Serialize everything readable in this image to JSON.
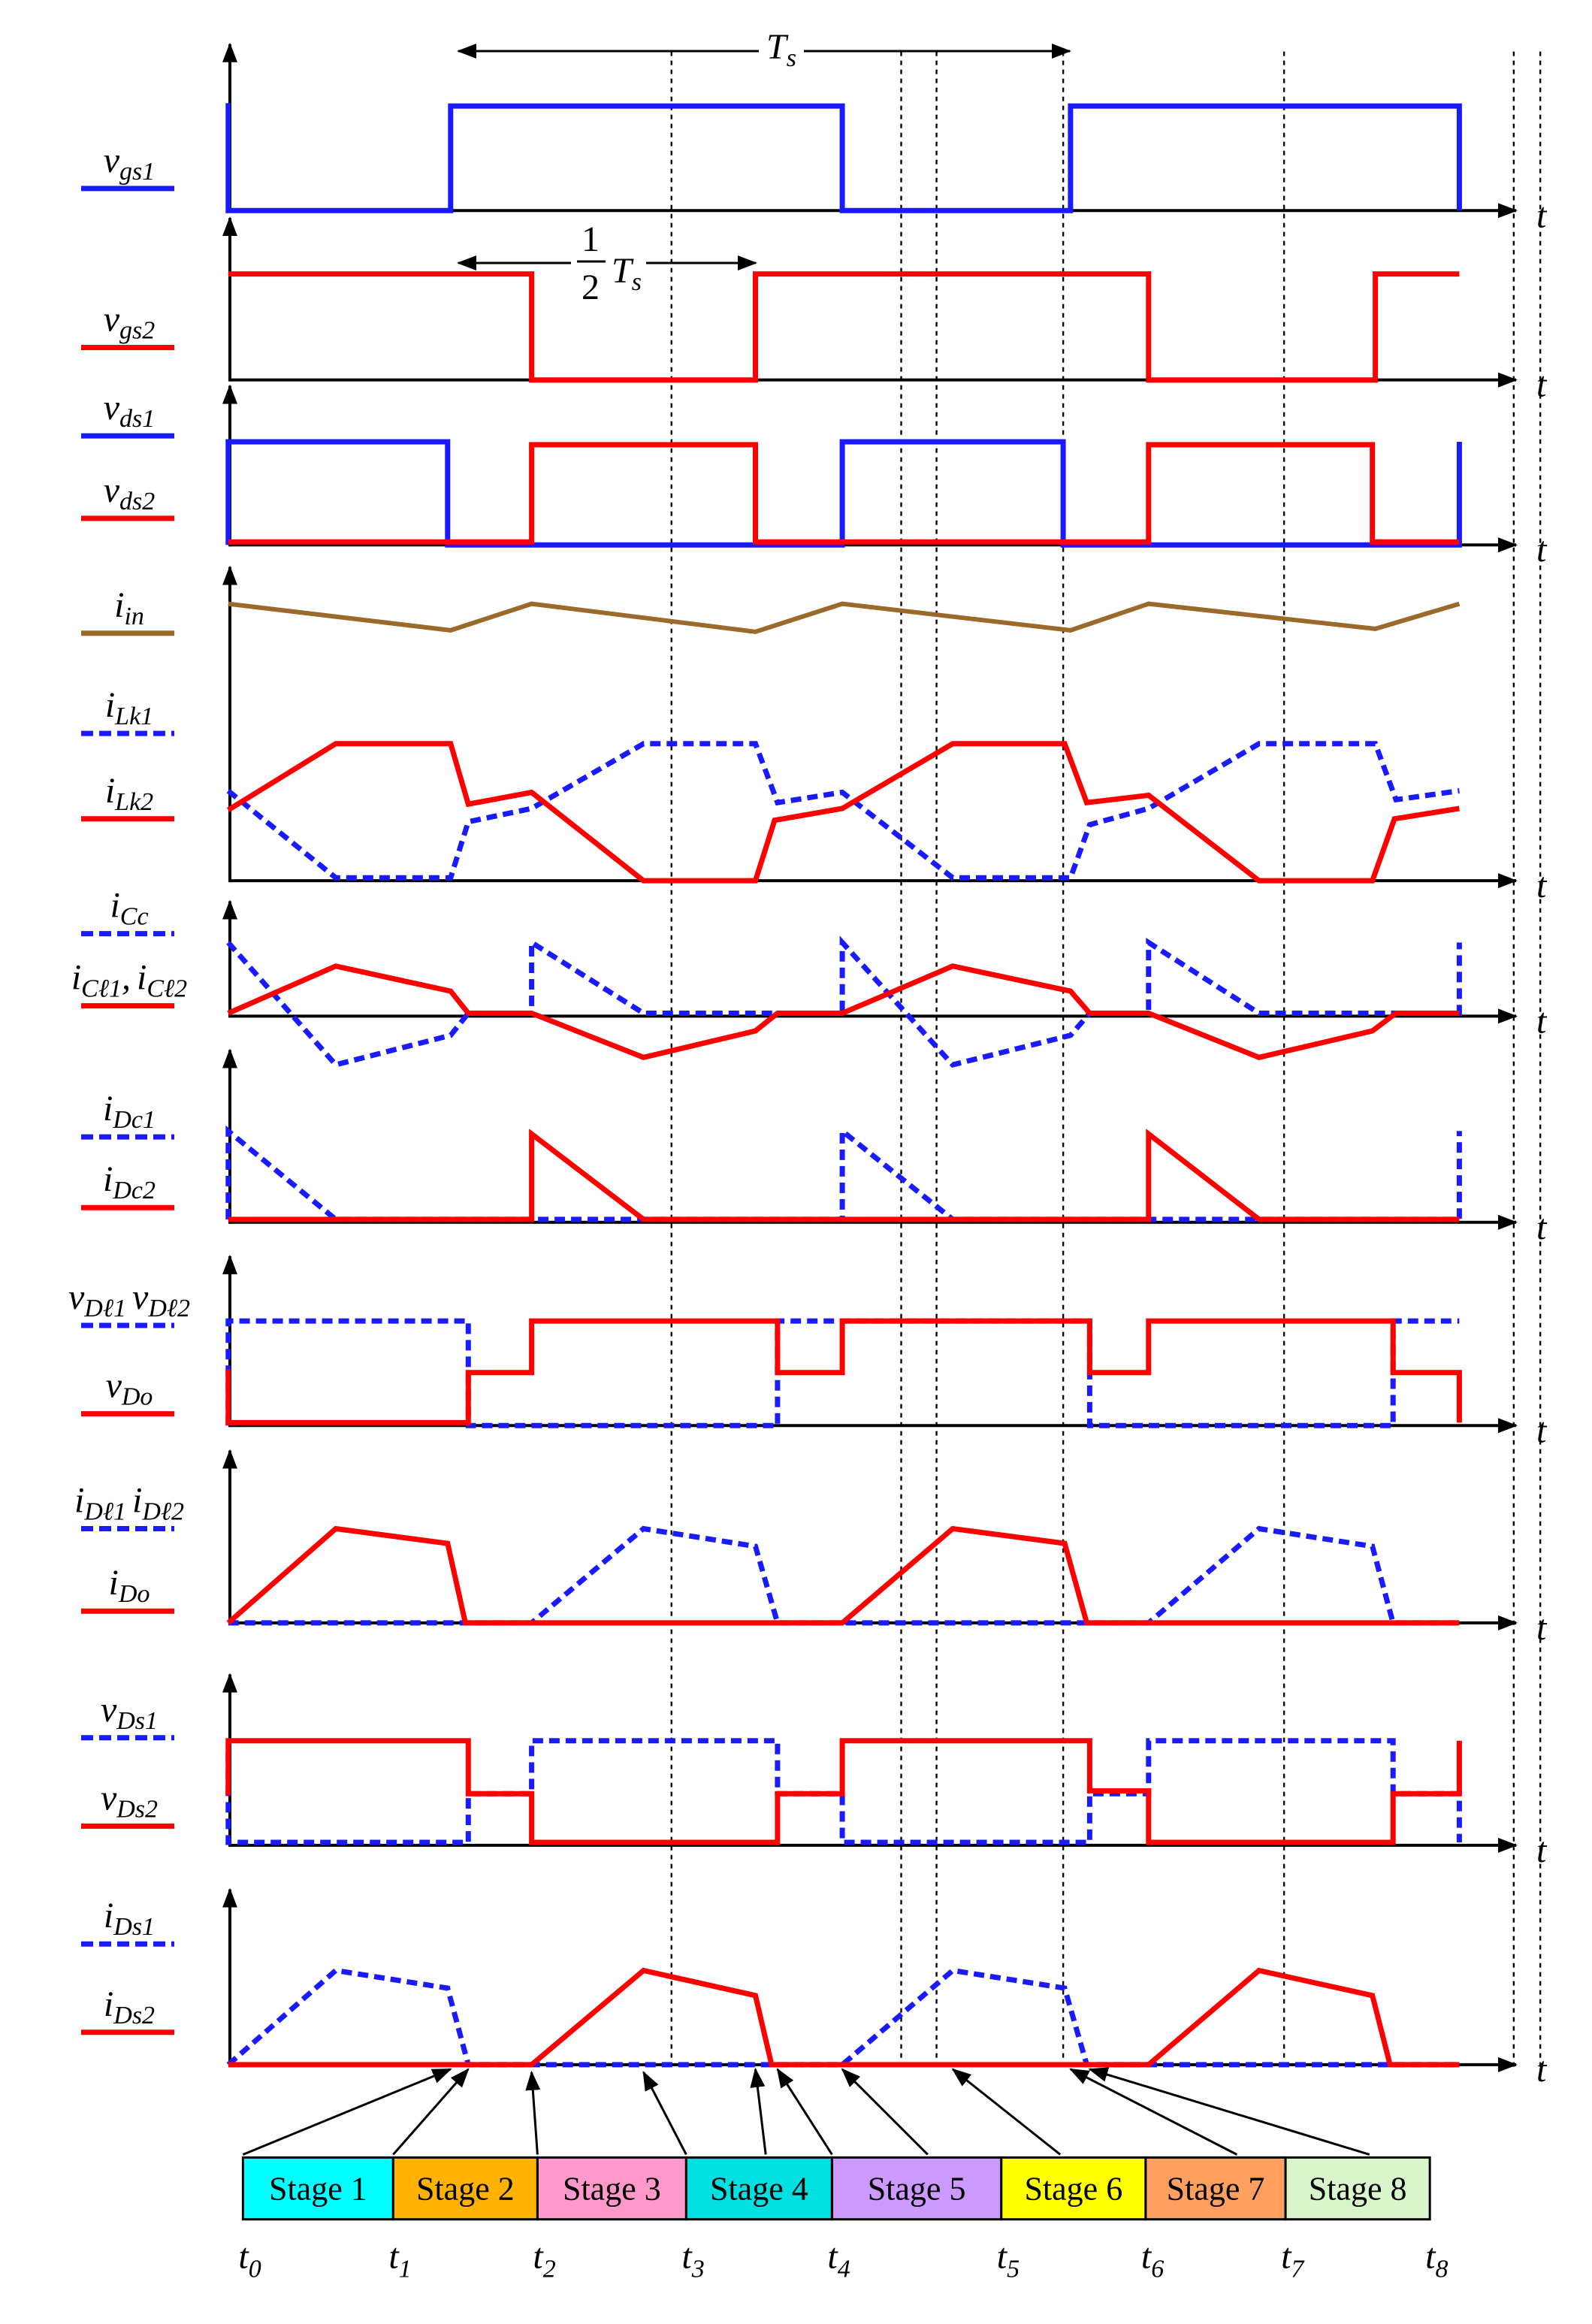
{
  "colors": {
    "blue": "#1a1aff",
    "red": "#ff0000",
    "brown": "#9b6a2a",
    "axis": "#000000"
  },
  "axis_symbol": "t",
  "period": {
    "symbol": "T",
    "sub": "s"
  },
  "half_period": {
    "num": "1",
    "den": "2",
    "symbol": "T",
    "sub": "s"
  },
  "time_labels": [
    {
      "main": "t",
      "sub": "0"
    },
    {
      "main": "t",
      "sub": "1"
    },
    {
      "main": "t",
      "sub": "2"
    },
    {
      "main": "t",
      "sub": "3"
    },
    {
      "main": "t",
      "sub": "4"
    },
    {
      "main": "t",
      "sub": "5"
    },
    {
      "main": "t",
      "sub": "6"
    },
    {
      "main": "t",
      "sub": "7"
    },
    {
      "main": "t",
      "sub": "8"
    }
  ],
  "stages": [
    {
      "label": "Stage 1",
      "color": "#00ffff"
    },
    {
      "label": "Stage 2",
      "color": "#ffb300"
    },
    {
      "label": "Stage 3",
      "color": "#ff99cc"
    },
    {
      "label": "Stage 4",
      "color": "#00e0e0"
    },
    {
      "label": "Stage 5",
      "color": "#cc99ff"
    },
    {
      "label": "Stage 6",
      "color": "#ffff00"
    },
    {
      "label": "Stage 7",
      "color": "#ffa060"
    },
    {
      "label": "Stage 8",
      "color": "#d9f5cc"
    }
  ],
  "panels": [
    {
      "labels": [
        {
          "main": "v",
          "sub": "gs1",
          "line": "blue"
        }
      ]
    },
    {
      "labels": [
        {
          "main": "v",
          "sub": "gs2",
          "line": "red"
        }
      ]
    },
    {
      "labels": [
        {
          "main": "v",
          "sub": "ds1",
          "line": "blue"
        },
        {
          "main": "v",
          "sub": "ds2",
          "line": "red"
        }
      ]
    },
    {
      "labels": [
        {
          "main": "i",
          "sub": "in",
          "line": "brown"
        },
        {
          "main": "i",
          "sub": "Lk1",
          "line": "blue-dash"
        },
        {
          "main": "i",
          "sub": "Lk2",
          "line": "red"
        }
      ]
    },
    {
      "labels": [
        {
          "main": "i",
          "sub": "Cc",
          "line": "blue-dash"
        },
        {
          "main": "i",
          "sub": "Cℓ1",
          "extra": ",",
          "main2": "i",
          "sub2": "Cℓ2",
          "line": "red"
        }
      ]
    },
    {
      "labels": [
        {
          "main": "i",
          "sub": "Dc1",
          "line": "blue-dash"
        },
        {
          "main": "i",
          "sub": "Dc2",
          "line": "red"
        }
      ]
    },
    {
      "labels": [
        {
          "main": "v",
          "sub": "Dℓ1",
          "main2": "v",
          "sub2": "Dℓ2",
          "line": "blue-dash"
        },
        {
          "main": "v",
          "sub": "Do",
          "line": "red"
        }
      ]
    },
    {
      "labels": [
        {
          "main": "i",
          "sub": "Dℓ1",
          "main2": "i",
          "sub2": "Dℓ2",
          "line": "blue-dash"
        },
        {
          "main": "i",
          "sub": "Do",
          "line": "red"
        }
      ]
    },
    {
      "labels": [
        {
          "main": "v",
          "sub": "Ds1",
          "line": "blue-dash"
        },
        {
          "main": "v",
          "sub": "Ds2",
          "line": "red"
        }
      ]
    },
    {
      "labels": [
        {
          "main": "i",
          "sub": "Ds1",
          "line": "blue-dash"
        },
        {
          "main": "i",
          "sub": "Ds2",
          "line": "red"
        }
      ]
    }
  ]
}
